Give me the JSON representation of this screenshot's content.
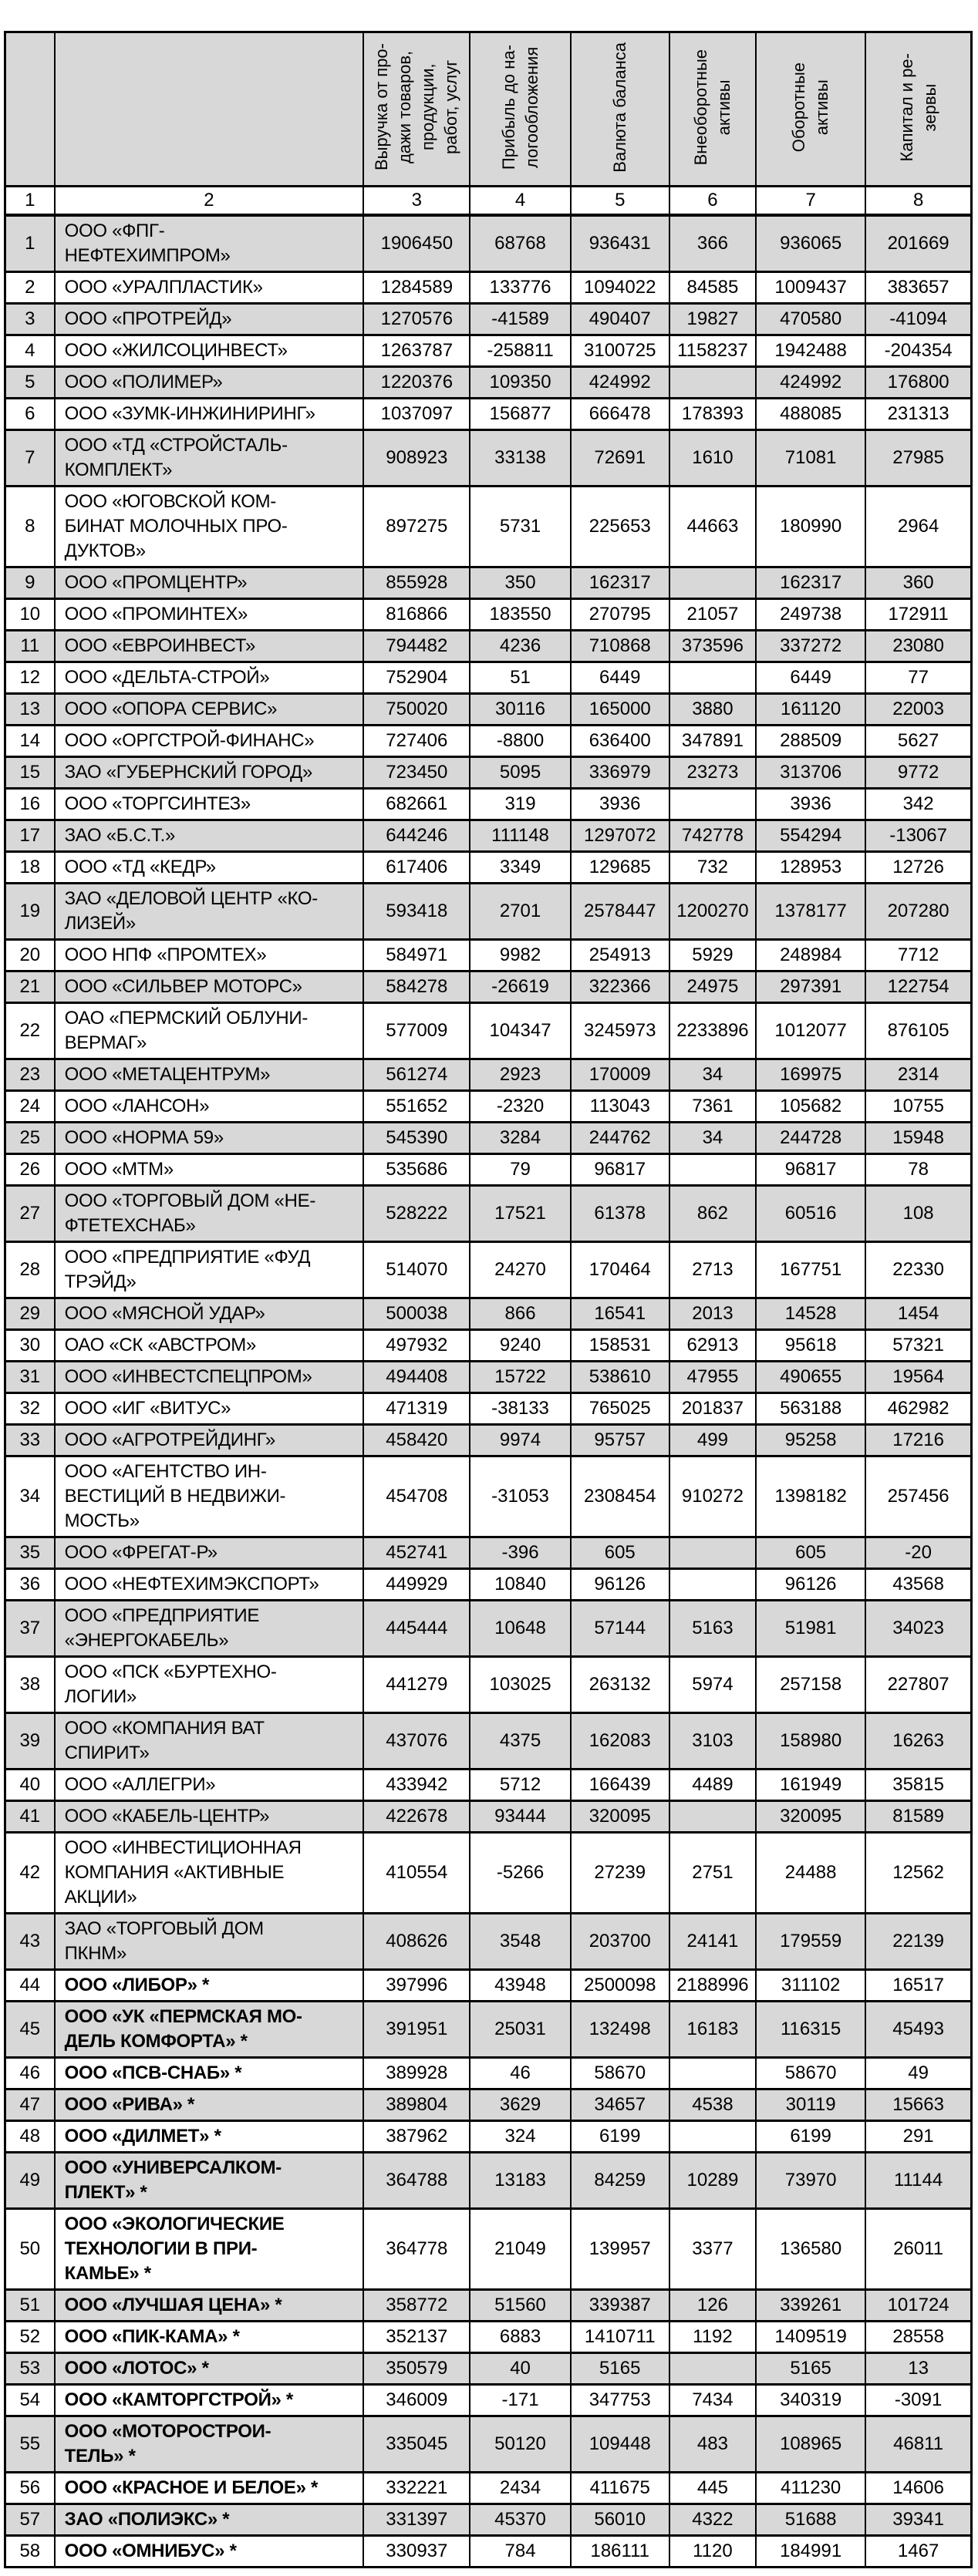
{
  "page": {
    "background": "#ffffff",
    "text_color": "#000000"
  },
  "table": {
    "colors": {
      "header_fill": "#d8d8d8",
      "alt_row_fill": "#d8d8d8",
      "row_fill": "#ffffff",
      "border": "#000000"
    },
    "columns": [
      {
        "id": "rank",
        "label": ""
      },
      {
        "id": "company",
        "label": ""
      },
      {
        "id": "revenue",
        "label": "Выручка от про-\nдажи товаров,\nпродукции,\nработ, услуг"
      },
      {
        "id": "profit",
        "label": "Прибыль до на-\nлогообложения"
      },
      {
        "id": "balance",
        "label": "Валюта баланса"
      },
      {
        "id": "noncurrent-assets",
        "label": "Внеоборотные\nактивы"
      },
      {
        "id": "current-assets",
        "label": "Оборотные\nактивы"
      },
      {
        "id": "capital",
        "label": "Капитал и ре-\nзервы"
      }
    ],
    "index_row": [
      "1",
      "2",
      "3",
      "4",
      "5",
      "6",
      "7",
      "8"
    ],
    "rows": [
      {
        "n": "1",
        "bold": false,
        "name": "ООО «ФПГ-\nНЕФТЕХИМПРОМ»",
        "values": [
          "1906450",
          "68768",
          "936431",
          "366",
          "936065",
          "201669"
        ]
      },
      {
        "n": "2",
        "bold": false,
        "name": "ООО «УРАЛПЛАСТИК»",
        "values": [
          "1284589",
          "133776",
          "1094022",
          "84585",
          "1009437",
          "383657"
        ]
      },
      {
        "n": "3",
        "bold": false,
        "name": "ООО «ПРОТРЕЙД»",
        "values": [
          "1270576",
          "-41589",
          "490407",
          "19827",
          "470580",
          "-41094"
        ]
      },
      {
        "n": "4",
        "bold": false,
        "name": "ООО «ЖИЛСОЦИНВЕСТ»",
        "values": [
          "1263787",
          "-258811",
          "3100725",
          "1158237",
          "1942488",
          "-204354"
        ]
      },
      {
        "n": "5",
        "bold": false,
        "name": "ООО «ПОЛИМЕР»",
        "values": [
          "1220376",
          "109350",
          "424992",
          "",
          "424992",
          "176800"
        ]
      },
      {
        "n": "6",
        "bold": false,
        "name": "ООО «ЗУМК-ИНЖИНИРИНГ»",
        "values": [
          "1037097",
          "156877",
          "666478",
          "178393",
          "488085",
          "231313"
        ]
      },
      {
        "n": "7",
        "bold": false,
        "name": "ООО «ТД «СТРОЙСТАЛЬ-\nКОМПЛЕКТ»",
        "values": [
          "908923",
          "33138",
          "72691",
          "1610",
          "71081",
          "27985"
        ]
      },
      {
        "n": "8",
        "bold": false,
        "name": "ООО «ЮГОВСКОЙ КОМ-\nБИНАТ МОЛОЧНЫХ ПРО-\nДУКТОВ»",
        "values": [
          "897275",
          "5731",
          "225653",
          "44663",
          "180990",
          "2964"
        ]
      },
      {
        "n": "9",
        "bold": false,
        "name": "ООО «ПРОМЦЕНТР»",
        "values": [
          "855928",
          "350",
          "162317",
          "",
          "162317",
          "360"
        ]
      },
      {
        "n": "10",
        "bold": false,
        "name": "ООО «ПРОМИНТЕХ»",
        "values": [
          "816866",
          "183550",
          "270795",
          "21057",
          "249738",
          "172911"
        ]
      },
      {
        "n": "11",
        "bold": false,
        "name": "ООО «ЕВРОИНВЕСТ»",
        "values": [
          "794482",
          "4236",
          "710868",
          "373596",
          "337272",
          "23080"
        ]
      },
      {
        "n": "12",
        "bold": false,
        "name": "ООО «ДЕЛЬТА-СТРОЙ»",
        "values": [
          "752904",
          "51",
          "6449",
          "",
          "6449",
          "77"
        ]
      },
      {
        "n": "13",
        "bold": false,
        "name": "ООО «ОПОРА СЕРВИС»",
        "values": [
          "750020",
          "30116",
          "165000",
          "3880",
          "161120",
          "22003"
        ]
      },
      {
        "n": "14",
        "bold": false,
        "name": "ООО «ОРГСТРОЙ-ФИНАНС»",
        "values": [
          "727406",
          "-8800",
          "636400",
          "347891",
          "288509",
          "5627"
        ]
      },
      {
        "n": "15",
        "bold": false,
        "name": "ЗАО «ГУБЕРНСКИЙ ГОРОД»",
        "values": [
          "723450",
          "5095",
          "336979",
          "23273",
          "313706",
          "9772"
        ]
      },
      {
        "n": "16",
        "bold": false,
        "name": "ООО «ТОРГСИНТЕЗ»",
        "values": [
          "682661",
          "319",
          "3936",
          "",
          "3936",
          "342"
        ]
      },
      {
        "n": "17",
        "bold": false,
        "name": "ЗАО «Б.С.Т.»",
        "values": [
          "644246",
          "111148",
          "1297072",
          "742778",
          "554294",
          "-13067"
        ]
      },
      {
        "n": "18",
        "bold": false,
        "name": "ООО «ТД «КЕДР»",
        "values": [
          "617406",
          "3349",
          "129685",
          "732",
          "128953",
          "12726"
        ]
      },
      {
        "n": "19",
        "bold": false,
        "name": "ЗАО «ДЕЛОВОЙ ЦЕНТР «КО-\nЛИЗЕЙ»",
        "values": [
          "593418",
          "2701",
          "2578447",
          "1200270",
          "1378177",
          "207280"
        ]
      },
      {
        "n": "20",
        "bold": false,
        "name": "ООО НПФ «ПРОМТЕХ»",
        "values": [
          "584971",
          "9982",
          "254913",
          "5929",
          "248984",
          "7712"
        ]
      },
      {
        "n": "21",
        "bold": false,
        "name": "ООО «СИЛЬВЕР МОТОРС»",
        "values": [
          "584278",
          "-26619",
          "322366",
          "24975",
          "297391",
          "122754"
        ]
      },
      {
        "n": "22",
        "bold": false,
        "name": "ОАО «ПЕРМСКИЙ ОБЛУНИ-\nВЕРМАГ»",
        "values": [
          "577009",
          "104347",
          "3245973",
          "2233896",
          "1012077",
          "876105"
        ]
      },
      {
        "n": "23",
        "bold": false,
        "name": "ООО «МЕТАЦЕНТРУМ»",
        "values": [
          "561274",
          "2923",
          "170009",
          "34",
          "169975",
          "2314"
        ]
      },
      {
        "n": "24",
        "bold": false,
        "name": "ООО «ЛАНСОН»",
        "values": [
          "551652",
          "-2320",
          "113043",
          "7361",
          "105682",
          "10755"
        ]
      },
      {
        "n": "25",
        "bold": false,
        "name": "ООО «НОРМА 59»",
        "values": [
          "545390",
          "3284",
          "244762",
          "34",
          "244728",
          "15948"
        ]
      },
      {
        "n": "26",
        "bold": false,
        "name": "ООО «МТМ»",
        "values": [
          "535686",
          "79",
          "96817",
          "",
          "96817",
          "78"
        ]
      },
      {
        "n": "27",
        "bold": false,
        "name": "ООО «ТОРГОВЫЙ ДОМ «НЕ-\nФТЕТЕХСНАБ»",
        "values": [
          "528222",
          "17521",
          "61378",
          "862",
          "60516",
          "108"
        ]
      },
      {
        "n": "28",
        "bold": false,
        "name": "ООО «ПРЕДПРИЯТИЕ «ФУД\nТРЭЙД»",
        "values": [
          "514070",
          "24270",
          "170464",
          "2713",
          "167751",
          "22330"
        ]
      },
      {
        "n": "29",
        "bold": false,
        "name": "ООО «МЯСНОЙ УДАР»",
        "values": [
          "500038",
          "866",
          "16541",
          "2013",
          "14528",
          "1454"
        ]
      },
      {
        "n": "30",
        "bold": false,
        "name": "ОАО «СК «АВСТРОМ»",
        "values": [
          "497932",
          "9240",
          "158531",
          "62913",
          "95618",
          "57321"
        ]
      },
      {
        "n": "31",
        "bold": false,
        "name": "ООО «ИНВЕСТСПЕЦПРОМ»",
        "values": [
          "494408",
          "15722",
          "538610",
          "47955",
          "490655",
          "19564"
        ]
      },
      {
        "n": "32",
        "bold": false,
        "name": "ООО «ИГ «ВИТУС»",
        "values": [
          "471319",
          "-38133",
          "765025",
          "201837",
          "563188",
          "462982"
        ]
      },
      {
        "n": "33",
        "bold": false,
        "name": "ООО «АГРОТРЕЙДИНГ»",
        "values": [
          "458420",
          "9974",
          "95757",
          "499",
          "95258",
          "17216"
        ]
      },
      {
        "n": "34",
        "bold": false,
        "name": "ООО «АГЕНТСТВО ИН-\nВЕСТИЦИЙ В НЕДВИЖИ-\nМОСТЬ»",
        "values": [
          "454708",
          "-31053",
          "2308454",
          "910272",
          "1398182",
          "257456"
        ]
      },
      {
        "n": "35",
        "bold": false,
        "name": "ООО «ФРЕГАТ-Р»",
        "values": [
          "452741",
          "-396",
          "605",
          "",
          "605",
          "-20"
        ]
      },
      {
        "n": "36",
        "bold": false,
        "name": "ООО «НЕФТЕХИМЭКСПОРТ»",
        "values": [
          "449929",
          "10840",
          "96126",
          "",
          "96126",
          "43568"
        ]
      },
      {
        "n": "37",
        "bold": false,
        "name": "ООО «ПРЕДПРИЯТИЕ\n«ЭНЕРГОКАБЕЛЬ»",
        "values": [
          "445444",
          "10648",
          "57144",
          "5163",
          "51981",
          "34023"
        ]
      },
      {
        "n": "38",
        "bold": false,
        "name": "ООО «ПСК «БУРТЕХНО-\nЛОГИИ»",
        "values": [
          "441279",
          "103025",
          "263132",
          "5974",
          "257158",
          "227807"
        ]
      },
      {
        "n": "39",
        "bold": false,
        "name": "ООО «КОМПАНИЯ ВАТ\nСПИРИТ»",
        "values": [
          "437076",
          "4375",
          "162083",
          "3103",
          "158980",
          "16263"
        ]
      },
      {
        "n": "40",
        "bold": false,
        "name": "ООО «АЛЛЕГРИ»",
        "values": [
          "433942",
          "5712",
          "166439",
          "4489",
          "161949",
          "35815"
        ]
      },
      {
        "n": "41",
        "bold": false,
        "name": "ООО «КАБЕЛЬ-ЦЕНТР»",
        "values": [
          "422678",
          "93444",
          "320095",
          "",
          "320095",
          "81589"
        ]
      },
      {
        "n": "42",
        "bold": false,
        "name": "ООО «ИНВЕСТИЦИОННАЯ\nКОМПАНИЯ «АКТИВНЫЕ\nАКЦИИ»",
        "values": [
          "410554",
          "-5266",
          "27239",
          "2751",
          "24488",
          "12562"
        ]
      },
      {
        "n": "43",
        "bold": false,
        "name": "ЗАО «ТОРГОВЫЙ ДОМ\nПКНМ»",
        "values": [
          "408626",
          "3548",
          "203700",
          "24141",
          "179559",
          "22139"
        ]
      },
      {
        "n": "44",
        "bold": true,
        "name": "ООО «ЛИБОР» *",
        "values": [
          "397996",
          "43948",
          "2500098",
          "2188996",
          "311102",
          "16517"
        ]
      },
      {
        "n": "45",
        "bold": true,
        "name": "ООО «УК «ПЕРМСКАЯ МО-\nДЕЛЬ КОМФОРТА» *",
        "values": [
          "391951",
          "25031",
          "132498",
          "16183",
          "116315",
          "45493"
        ]
      },
      {
        "n": "46",
        "bold": true,
        "name": "ООО «ПСВ-СНАБ» *",
        "values": [
          "389928",
          "46",
          "58670",
          "",
          "58670",
          "49"
        ]
      },
      {
        "n": "47",
        "bold": true,
        "name": "ООО «РИВА» *",
        "values": [
          "389804",
          "3629",
          "34657",
          "4538",
          "30119",
          "15663"
        ]
      },
      {
        "n": "48",
        "bold": true,
        "name": "ООО «ДИЛМЕТ» *",
        "values": [
          "387962",
          "324",
          "6199",
          "",
          "6199",
          "291"
        ]
      },
      {
        "n": "49",
        "bold": true,
        "name": "ООО «УНИВЕРСАЛКОМ-\nПЛЕКТ» *",
        "values": [
          "364788",
          "13183",
          "84259",
          "10289",
          "73970",
          "11144"
        ]
      },
      {
        "n": "50",
        "bold": true,
        "name": "ООО «ЭКОЛОГИЧЕСКИЕ\nТЕХНОЛОГИИ В ПРИ-\nКАМЬЕ» *",
        "values": [
          "364778",
          "21049",
          "139957",
          "3377",
          "136580",
          "26011"
        ]
      },
      {
        "n": "51",
        "bold": true,
        "name": "ООО «ЛУЧШАЯ ЦЕНА» *",
        "values": [
          "358772",
          "51560",
          "339387",
          "126",
          "339261",
          "101724"
        ]
      },
      {
        "n": "52",
        "bold": true,
        "name": "ООО «ПИК-КАМА» *",
        "values": [
          "352137",
          "6883",
          "1410711",
          "1192",
          "1409519",
          "28558"
        ]
      },
      {
        "n": "53",
        "bold": true,
        "name": "ООО «ЛОТОС» *",
        "values": [
          "350579",
          "40",
          "5165",
          "",
          "5165",
          "13"
        ]
      },
      {
        "n": "54",
        "bold": true,
        "name": "ООО «КАМТОРГСТРОЙ» *",
        "values": [
          "346009",
          "-171",
          "347753",
          "7434",
          "340319",
          "-3091"
        ]
      },
      {
        "n": "55",
        "bold": true,
        "name": "ООО «МОТОРОСТРОИ-\nТЕЛЬ» *",
        "values": [
          "335045",
          "50120",
          "109448",
          "483",
          "108965",
          "46811"
        ]
      },
      {
        "n": "56",
        "bold": true,
        "name": "ООО «КРАСНОЕ И БЕЛОЕ» *",
        "values": [
          "332221",
          "2434",
          "411675",
          "445",
          "411230",
          "14606"
        ]
      },
      {
        "n": "57",
        "bold": true,
        "name": "ЗАО «ПОЛИЭКС» *",
        "values": [
          "331397",
          "45370",
          "56010",
          "4322",
          "51688",
          "39341"
        ]
      },
      {
        "n": "58",
        "bold": true,
        "name": "ООО «ОМНИБУС» *",
        "values": [
          "330937",
          "784",
          "186111",
          "1120",
          "184991",
          "1467"
        ]
      }
    ]
  }
}
